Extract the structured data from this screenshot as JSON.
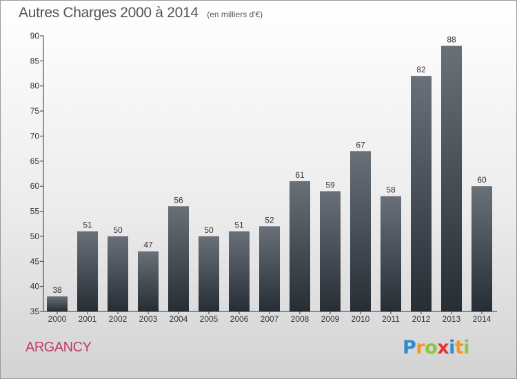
{
  "title": "Autres Charges 2000 à 2014",
  "subtitle": "(en milliers d'€)",
  "place": "ARGANCY",
  "logo": {
    "text": "Proxiti",
    "letters": [
      {
        "ch": "P",
        "color": "#2e8bd0"
      },
      {
        "ch": "r",
        "color": "#f39a1e"
      },
      {
        "ch": "o",
        "color": "#8cc63f"
      },
      {
        "ch": "x",
        "color": "#e8322d"
      },
      {
        "ch": "i",
        "color": "#2e8bd0"
      },
      {
        "ch": "t",
        "color": "#f39a1e"
      },
      {
        "ch": "i",
        "color": "#8cc63f"
      }
    ]
  },
  "colors": {
    "bar_top": "#6a7078",
    "bar_bottom": "#262d34",
    "axis": "#333333",
    "title": "#555555",
    "place": "#c0396b"
  },
  "chart_data": {
    "type": "bar",
    "title": "Autres Charges 2000 à 2014",
    "subtitle": "(en milliers d'€)",
    "xlabel": "",
    "ylabel": "",
    "categories": [
      "2000",
      "2001",
      "2002",
      "2003",
      "2004",
      "2005",
      "2006",
      "2007",
      "2008",
      "2009",
      "2010",
      "2011",
      "2012",
      "2013",
      "2014"
    ],
    "values": [
      38,
      51,
      50,
      47,
      56,
      50,
      51,
      52,
      61,
      59,
      67,
      58,
      82,
      88,
      60
    ],
    "ylim": [
      35,
      90
    ],
    "yticks": [
      35,
      40,
      45,
      50,
      55,
      60,
      65,
      70,
      75,
      80,
      85,
      90
    ],
    "grid": false,
    "data_labels": true
  }
}
